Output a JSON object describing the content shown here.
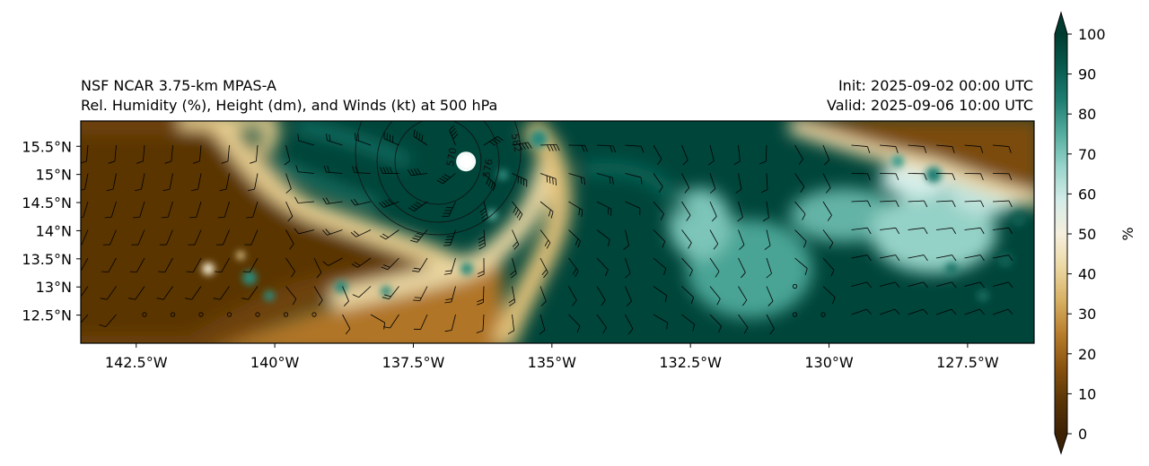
{
  "title": {
    "model": "NSF NCAR 3.75-km MPAS-A",
    "fields": "Rel. Humidity (%), Height (dm), and Winds (kt) at 500 hPa",
    "init": "Init: 2025-09-02 00:00 UTC",
    "valid": "Valid: 2025-09-06 10:00 UTC"
  },
  "map": {
    "lon_range": [
      -143.5,
      -126.3
    ],
    "lat_range": [
      12.0,
      15.95
    ],
    "lon_ticks": [
      {
        "value": -142.5,
        "label": "142.5°W"
      },
      {
        "value": -140.0,
        "label": "140°W"
      },
      {
        "value": -137.5,
        "label": "137.5°W"
      },
      {
        "value": -135.0,
        "label": "135°W"
      },
      {
        "value": -132.5,
        "label": "132.5°W"
      },
      {
        "value": -130.0,
        "label": "130°W"
      },
      {
        "value": -127.5,
        "label": "127.5°W"
      }
    ],
    "lat_ticks": [
      {
        "value": 15.5,
        "label": "15.5°N"
      },
      {
        "value": 15.0,
        "label": "15°N"
      },
      {
        "value": 14.5,
        "label": "14.5°N"
      },
      {
        "value": 14.0,
        "label": "14°N"
      },
      {
        "value": 13.5,
        "label": "13.5°N"
      },
      {
        "value": 13.0,
        "label": "13°N"
      },
      {
        "value": 12.5,
        "label": "12.5°N"
      }
    ],
    "cyclone_center": {
      "lon": -136.55,
      "lat": 15.23
    },
    "height_contours": [
      {
        "label": "570",
        "lon": -136.75,
        "lat": 15.3
      },
      {
        "label": "576",
        "lon": -136.1,
        "lat": 15.1
      },
      {
        "label": "582",
        "lon": -135.7,
        "lat": 15.55
      }
    ]
  },
  "colorbar": {
    "unit_label": "%",
    "range": [
      0,
      100
    ],
    "ticks": [
      "0",
      "10",
      "20",
      "30",
      "40",
      "50",
      "60",
      "70",
      "80",
      "90",
      "100"
    ],
    "colors": [
      "#3d2104",
      "#5a3506",
      "#8a530f",
      "#b87d2c",
      "#d7b063",
      "#ecd8a4",
      "#f5efdd",
      "#d5ece8",
      "#99d5cb",
      "#55ad9f",
      "#1f7e72",
      "#085a4e",
      "#003c30"
    ]
  }
}
